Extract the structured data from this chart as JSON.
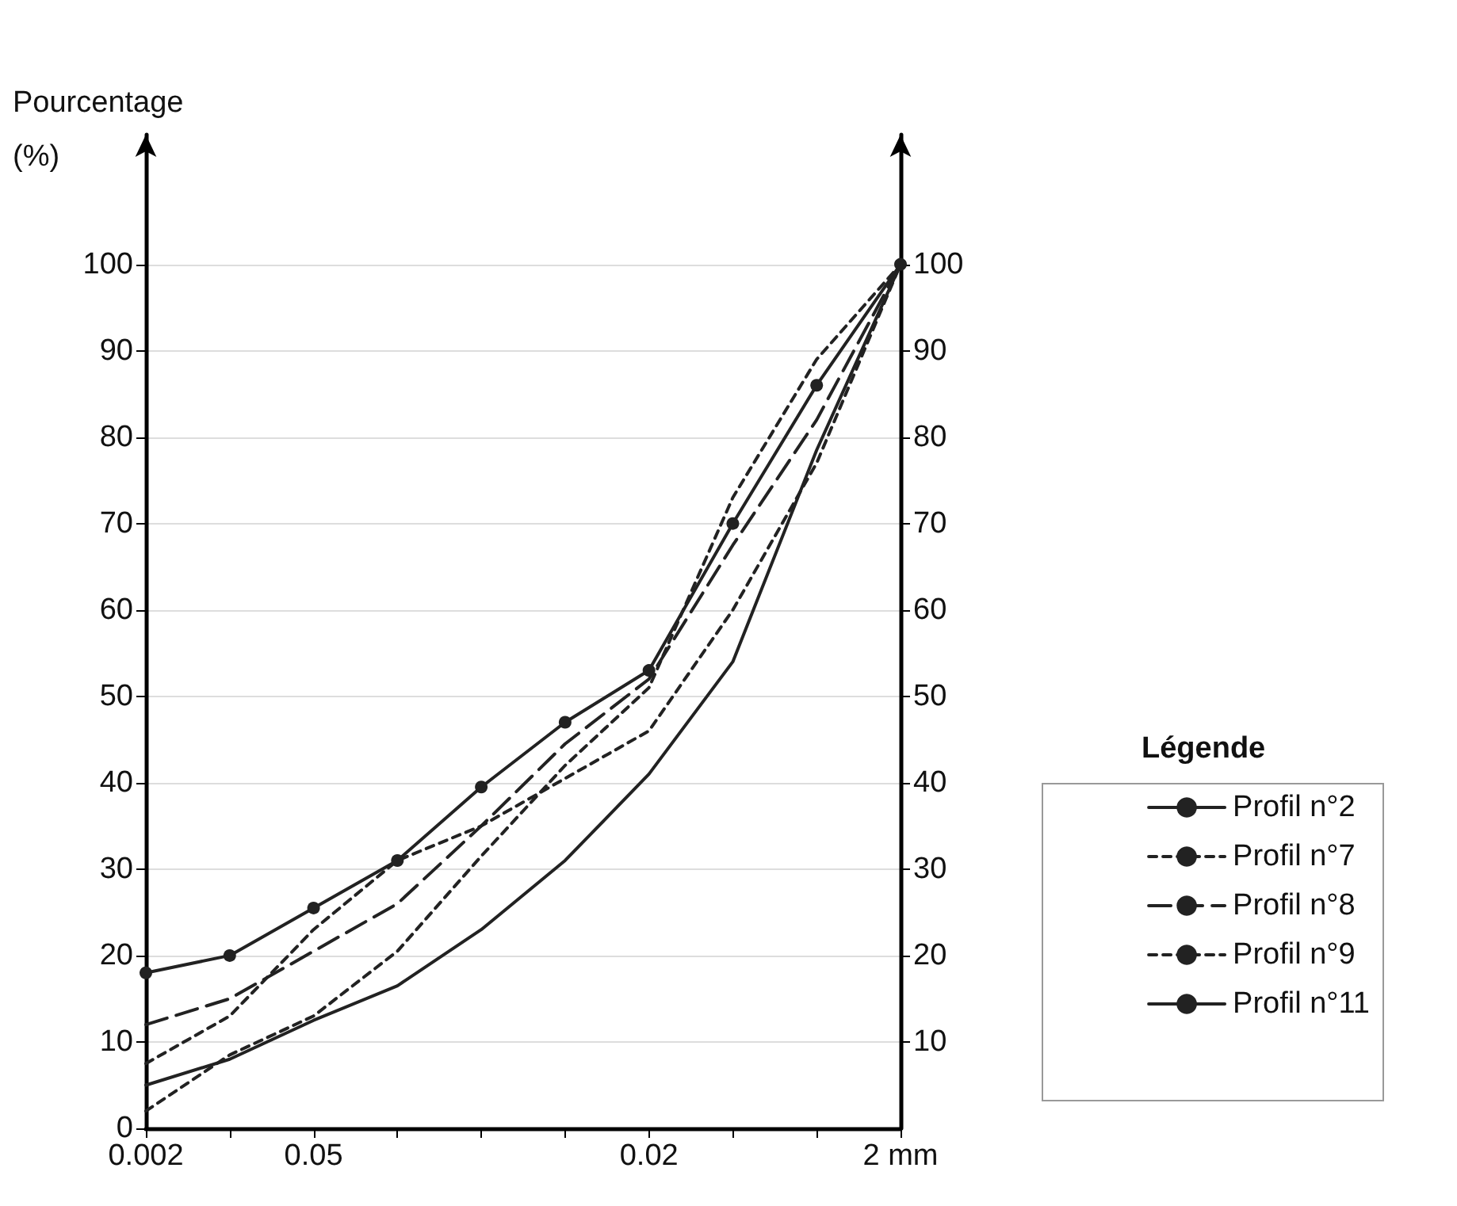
{
  "chart_data": {
    "type": "line",
    "ylabel": "Pourcentage\n(%)",
    "legend_title": "Légende",
    "categories": [
      "0.002",
      null,
      "0.05",
      null,
      null,
      null,
      "0.02",
      null,
      null,
      "2 mm"
    ],
    "series": [
      {
        "name": "Profil n°2",
        "color": "#222222",
        "marker": "circle",
        "line_style": "solid",
        "values": [
          18,
          20,
          25.5,
          31,
          39.5,
          47,
          53,
          70,
          86,
          100
        ]
      },
      {
        "name": "Profil n°7",
        "color": "#222222",
        "marker": "none",
        "line_style": "dotted",
        "values": [
          2,
          8.5,
          13,
          20.5,
          31.5,
          42,
          51,
          73,
          89,
          100
        ]
      },
      {
        "name": "Profil n°8",
        "color": "#222222",
        "marker": "none",
        "line_style": "dashed",
        "values": [
          12,
          15,
          20.5,
          26,
          35,
          44.5,
          52,
          67.5,
          82,
          100
        ]
      },
      {
        "name": "Profil n°9",
        "color": "#222222",
        "marker": "none",
        "line_style": "dotted",
        "values": [
          7.5,
          13,
          23,
          31,
          35,
          40.5,
          46,
          60,
          77,
          100
        ]
      },
      {
        "name": "Profil n°11",
        "color": "#222222",
        "marker": "none",
        "line_style": "solid",
        "values": [
          5,
          8,
          12.5,
          16.5,
          23,
          31,
          41,
          54,
          78.5,
          100
        ]
      }
    ],
    "ylim": [
      0,
      115
    ],
    "yticks": [
      0,
      10,
      20,
      30,
      40,
      50,
      60,
      70,
      80,
      90,
      100
    ],
    "y2lim": [
      0,
      115
    ],
    "y2ticks": [
      10,
      20,
      30,
      40,
      50,
      60,
      70,
      80,
      90,
      100
    ],
    "grid": "y",
    "legend": "right"
  }
}
